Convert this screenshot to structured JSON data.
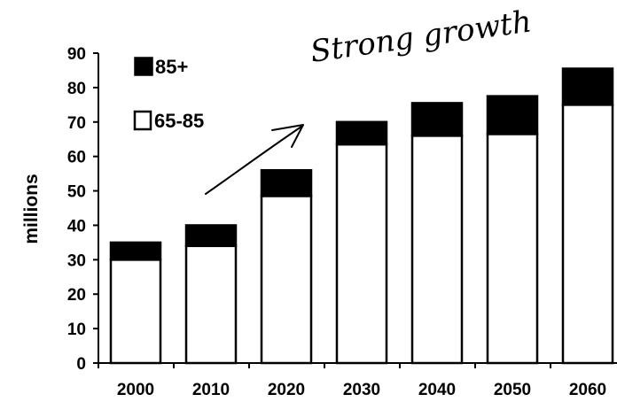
{
  "chart_data": {
    "type": "bar",
    "stacked": true,
    "categories": [
      "2000",
      "2010",
      "2020",
      "2030",
      "2040",
      "2050",
      "2060"
    ],
    "series": [
      {
        "name": "65-85",
        "values": [
          30,
          34,
          48.5,
          63.5,
          66,
          66.5,
          75
        ],
        "color": "#ffffff"
      },
      {
        "name": "85+",
        "values": [
          5,
          6,
          7.5,
          6.5,
          9.5,
          11,
          10.5
        ],
        "color": "#000000"
      }
    ],
    "ylabel": "millions",
    "ylim": [
      0,
      90
    ],
    "yticks": [
      0,
      10,
      20,
      30,
      40,
      50,
      60,
      70,
      80,
      90
    ],
    "grid": false,
    "legend_position": "top-left",
    "annotation": {
      "text": "Strong growth",
      "has_arrow": true
    }
  }
}
